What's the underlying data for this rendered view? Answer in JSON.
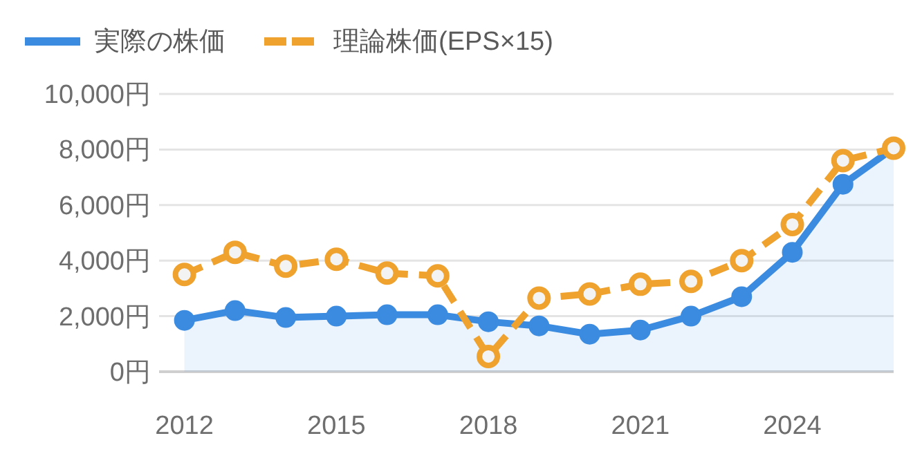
{
  "chart_data": {
    "type": "line",
    "x": [
      "2012",
      "2013",
      "2014",
      "2015",
      "2016",
      "2017",
      "2018",
      "2019",
      "2020",
      "2021",
      "2022",
      "2023",
      "2024",
      "2025",
      "2026"
    ],
    "series": [
      {
        "name": "実際の株価",
        "type": "area",
        "color": "#3b8be0",
        "line_style": "solid",
        "values": [
          1850,
          2200,
          1950,
          2000,
          2050,
          2050,
          1800,
          1650,
          1350,
          1500,
          2000,
          2700,
          4300,
          6750,
          8050
        ]
      },
      {
        "name": "理論株価(EPS×15)",
        "type": "line",
        "color": "#f0a22e",
        "line_style": "dashed",
        "values": [
          3500,
          4300,
          3800,
          4050,
          3550,
          3450,
          550,
          2650,
          2800,
          3150,
          3250,
          4000,
          5300,
          7600,
          8050
        ]
      }
    ],
    "xlim": [
      "2011-07",
      "2026"
    ],
    "xticks": [
      "2012",
      "2015",
      "2018",
      "2021",
      "2024"
    ],
    "ylim": [
      0,
      10000
    ],
    "yticks": [
      {
        "value": 0,
        "label": "0円"
      },
      {
        "value": 2000,
        "label": "2,000円"
      },
      {
        "value": 4000,
        "label": "4,000円"
      },
      {
        "value": 6000,
        "label": "6,000円"
      },
      {
        "value": 8000,
        "label": "8,000円"
      },
      {
        "value": 10000,
        "label": "10,000円"
      }
    ],
    "grid": "y",
    "legend": "top left",
    "marker": "circle"
  }
}
